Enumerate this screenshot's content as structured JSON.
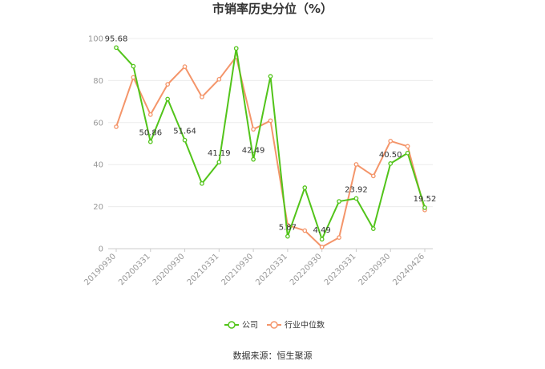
{
  "chart_data": {
    "type": "line",
    "title": "市销率历史分位（%）",
    "x": [
      "20190930",
      "20191231",
      "20200331",
      "20200630",
      "20200930",
      "20201231",
      "20210331",
      "20210630",
      "20210930",
      "20211231",
      "20220331",
      "20220630",
      "20220930",
      "20221231",
      "20230331",
      "20230630",
      "20230930",
      "20231231",
      "20240426"
    ],
    "xtick_labels": [
      "20190930",
      "20200331",
      "20200930",
      "20210331",
      "20210930",
      "20220331",
      "20220930",
      "20230331",
      "20230930",
      "20240426"
    ],
    "ylim": [
      0,
      100
    ],
    "yticks": [
      0,
      20,
      40,
      60,
      80,
      100
    ],
    "grid": true,
    "legend_position": "bottom",
    "series": [
      {
        "name": "公司",
        "color": "#52c41a",
        "values": [
          95.68,
          86.8,
          50.86,
          71.2,
          51.64,
          31.0,
          41.19,
          95.3,
          42.49,
          82.0,
          5.87,
          29.0,
          4.49,
          22.5,
          23.92,
          9.5,
          40.5,
          45.5,
          19.52
        ]
      },
      {
        "name": "行业中位数",
        "color": "#f4956a",
        "values": [
          58.0,
          81.5,
          63.8,
          78.2,
          86.6,
          72.2,
          80.6,
          91.3,
          56.8,
          60.9,
          11.2,
          8.6,
          0.8,
          5.3,
          40.1,
          34.6,
          51.2,
          48.7,
          18.4
        ]
      }
    ],
    "annotations": [
      {
        "series": 0,
        "index": 0,
        "text": "95.68"
      },
      {
        "series": 0,
        "index": 2,
        "text": "50.86"
      },
      {
        "series": 0,
        "index": 4,
        "text": "51.64"
      },
      {
        "series": 0,
        "index": 6,
        "text": "41.19"
      },
      {
        "series": 0,
        "index": 8,
        "text": "42.49"
      },
      {
        "series": 0,
        "index": 10,
        "text": "5.87"
      },
      {
        "series": 0,
        "index": 12,
        "text": "4.49"
      },
      {
        "series": 0,
        "index": 14,
        "text": "23.92"
      },
      {
        "series": 0,
        "index": 16,
        "text": "40.50"
      },
      {
        "series": 0,
        "index": 18,
        "text": "19.52"
      }
    ],
    "source": "数据来源：恒生聚源"
  }
}
